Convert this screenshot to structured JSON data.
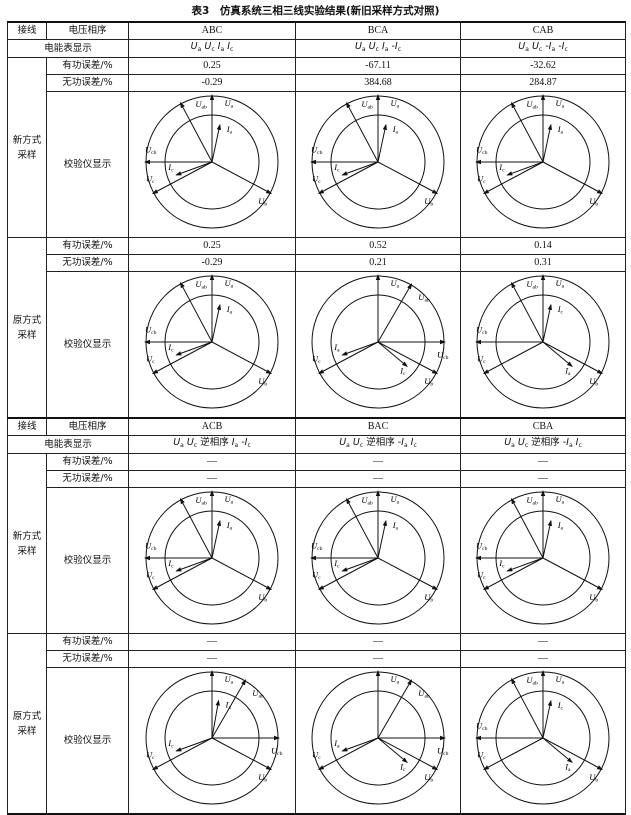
{
  "title": "表3　仿真系统三相三线实验结果(新旧采样方式对照)",
  "labels": {
    "wiring": "接线",
    "seq": "电压相序",
    "meter": "电能表显示",
    "active": "有功误差/%",
    "reactive": "无功误差/%",
    "display": "校验仪显示"
  },
  "blocks": [
    {
      "cols": [
        "ABC",
        "BCA",
        "CAB"
      ],
      "meter": [
        "U_a U_c I_a I_c",
        "U_a U_c I_a -I_c",
        "U_a U_c -I_a -I_c"
      ],
      "groups": [
        {
          "name": "新方式采样",
          "active": [
            "0.25",
            "-67.11",
            "-32.62"
          ],
          "reactive": [
            "-0.29",
            "384.68",
            "284.87"
          ],
          "diagrams": [
            "A_new",
            "A_new",
            "A_new"
          ]
        },
        {
          "name": "原方式采样",
          "active": [
            "0.25",
            "0.52",
            "0.14"
          ],
          "reactive": [
            "-0.29",
            "0.21",
            "0.31"
          ],
          "diagrams": [
            "A_new",
            "B_old",
            "C_old"
          ]
        }
      ]
    },
    {
      "cols": [
        "ACB",
        "BAC",
        "CBA"
      ],
      "meter": [
        "U_a U_c 逆相序 I_a -I_c",
        "U_a U_c 逆相序 -I_a I_c",
        "U_a U_c 逆相序 -I_a I_c"
      ],
      "groups": [
        {
          "name": "新方式采样",
          "active": [
            "—",
            "—",
            "—"
          ],
          "reactive": [
            "—",
            "—",
            "—"
          ],
          "diagrams": [
            "A_new",
            "A_new",
            "A_new"
          ]
        },
        {
          "name": "原方式采样",
          "active": [
            "—",
            "—",
            "—"
          ],
          "reactive": [
            "—",
            "—",
            "—"
          ],
          "diagrams": [
            "D_old",
            "B_old",
            "C_old"
          ]
        }
      ]
    }
  ],
  "phasor_sets": {
    "A_new": [
      {
        "label": "U_a",
        "angle": 90,
        "kind": "U"
      },
      {
        "label": "U_ab",
        "angle": 118,
        "kind": "U"
      },
      {
        "label": "U_cb",
        "angle": 180,
        "kind": "U"
      },
      {
        "label": "U_c",
        "angle": 208,
        "kind": "U"
      },
      {
        "label": "U_b",
        "angle": -28,
        "kind": "U"
      },
      {
        "label": "I_a",
        "angle": 78,
        "kind": "I"
      },
      {
        "label": "I_c",
        "angle": 200,
        "kind": "I"
      }
    ],
    "B_old": [
      {
        "label": "U_a",
        "angle": 90,
        "kind": "U"
      },
      {
        "label": "U_ab",
        "angle": 60,
        "kind": "U"
      },
      {
        "label": "U_cb",
        "angle": 0,
        "kind": "U"
      },
      {
        "label": "U_c",
        "angle": 208,
        "kind": "U"
      },
      {
        "label": "U_b",
        "angle": -28,
        "kind": "U"
      },
      {
        "label": "I_a",
        "angle": 200,
        "kind": "I"
      },
      {
        "label": "I_c",
        "angle": -40,
        "kind": "I"
      }
    ],
    "C_old": [
      {
        "label": "U_a",
        "angle": 90,
        "kind": "U"
      },
      {
        "label": "U_ab",
        "angle": 118,
        "kind": "U"
      },
      {
        "label": "U_cb",
        "angle": 180,
        "kind": "U"
      },
      {
        "label": "U_c",
        "angle": 208,
        "kind": "U"
      },
      {
        "label": "U_b",
        "angle": -28,
        "kind": "U"
      },
      {
        "label": "I_c",
        "angle": 78,
        "kind": "I"
      },
      {
        "label": "I_a",
        "angle": -40,
        "kind": "I"
      }
    ],
    "D_old": [
      {
        "label": "U_a",
        "angle": 90,
        "kind": "U"
      },
      {
        "label": "U_ab",
        "angle": 60,
        "kind": "U"
      },
      {
        "label": "U_cb",
        "angle": 0,
        "kind": "U"
      },
      {
        "label": "U_c",
        "angle": 208,
        "kind": "U"
      },
      {
        "label": "U_b",
        "angle": -28,
        "kind": "U"
      },
      {
        "label": "I_a",
        "angle": 80,
        "kind": "I"
      },
      {
        "label": "I_c",
        "angle": 200,
        "kind": "I"
      }
    ]
  }
}
